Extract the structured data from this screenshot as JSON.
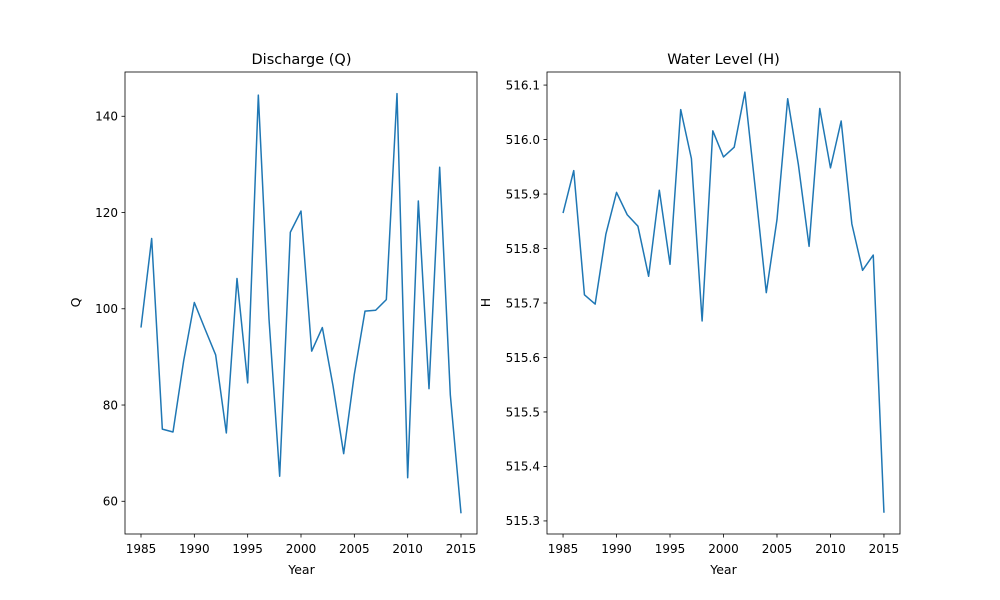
{
  "colors": {
    "line": "#1f77b4",
    "axes": "#000000",
    "background": "#ffffff"
  },
  "chart_data": [
    {
      "type": "line",
      "title": "Discharge (Q)",
      "xlabel": "Year",
      "ylabel": "Q",
      "xlim": [
        1983.5,
        2016.5
      ],
      "ylim": [
        53.2,
        149.2
      ],
      "xticks": [
        1985,
        1990,
        1995,
        2000,
        2005,
        2010,
        2015
      ],
      "yticks": [
        60,
        80,
        100,
        120,
        140
      ],
      "grid": false,
      "x": [
        1985,
        1986,
        1987,
        1988,
        1989,
        1990,
        1991,
        1992,
        1993,
        1994,
        1995,
        1996,
        1997,
        1998,
        1999,
        2000,
        2001,
        2002,
        2003,
        2004,
        2005,
        2006,
        2007,
        2008,
        2009,
        2010,
        2011,
        2012,
        2013,
        2014,
        2015
      ],
      "series": [
        {
          "values": [
            96.1,
            114.6,
            75.0,
            74.4,
            89.2,
            101.3,
            95.8,
            90.4,
            74.2,
            106.3,
            84.6,
            144.4,
            97.9,
            65.2,
            115.9,
            120.3,
            91.2,
            96.1,
            84.0,
            69.9,
            86.4,
            99.5,
            99.7,
            101.9,
            144.7,
            64.9,
            122.4,
            83.4,
            129.4,
            82.1,
            57.5
          ]
        }
      ]
    },
    {
      "type": "line",
      "title": "Water Level (H)",
      "xlabel": "Year",
      "ylabel": "H",
      "xlim": [
        1983.5,
        2016.5
      ],
      "ylim": [
        515.276,
        516.124
      ],
      "xticks": [
        1985,
        1990,
        1995,
        2000,
        2005,
        2010,
        2015
      ],
      "yticks": [
        515.3,
        515.4,
        515.5,
        515.6,
        515.7,
        515.8,
        515.9,
        516.0,
        516.1
      ],
      "yticklabels": [
        "515.3",
        "515.4",
        "515.5",
        "515.6",
        "515.7",
        "515.8",
        "515.9",
        "516.0",
        "516.1"
      ],
      "grid": false,
      "x": [
        1985,
        1986,
        1987,
        1988,
        1989,
        1990,
        1991,
        1992,
        1993,
        1994,
        1995,
        1996,
        1997,
        1998,
        1999,
        2000,
        2001,
        2002,
        2003,
        2004,
        2005,
        2006,
        2007,
        2008,
        2009,
        2010,
        2011,
        2012,
        2013,
        2014,
        2015
      ],
      "series": [
        {
          "values": [
            515.865,
            515.943,
            515.715,
            515.698,
            515.826,
            515.903,
            515.862,
            515.841,
            515.749,
            515.907,
            515.771,
            516.055,
            515.965,
            515.667,
            516.016,
            515.968,
            515.986,
            516.087,
            515.905,
            515.719,
            515.853,
            516.075,
            515.954,
            515.804,
            516.057,
            515.948,
            516.034,
            515.845,
            515.76,
            515.788,
            515.315
          ]
        }
      ]
    }
  ]
}
